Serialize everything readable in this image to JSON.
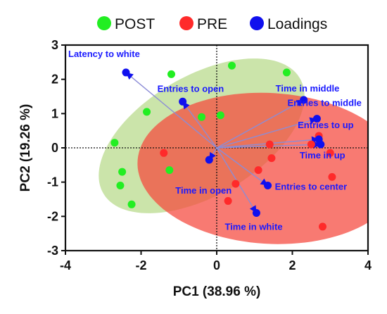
{
  "chart_data": {
    "type": "scatter",
    "xlabel": "PC1 (38.96 %)",
    "ylabel": "PC2 (19.26 %)",
    "xlim": [
      -4,
      4
    ],
    "ylim": [
      -3,
      3
    ],
    "x_ticks": [
      "-4",
      "-2",
      "0",
      "2",
      "4"
    ],
    "y_ticks": [
      "3",
      "2",
      "1",
      "0",
      "-1",
      "-2",
      "-3"
    ],
    "legend": {
      "placement": "top",
      "entries": [
        "POST",
        "PRE",
        "Loadings"
      ]
    },
    "colors": {
      "POST": "#22ee22",
      "PRE": "#ff2a2a",
      "Loadings": "#1010ee",
      "arrow": "#8c8cd6"
    },
    "series": [
      {
        "name": "POST",
        "points": [
          [
            -2.7,
            0.15
          ],
          [
            -2.5,
            -0.7
          ],
          [
            -2.55,
            -1.1
          ],
          [
            -2.25,
            -1.65
          ],
          [
            -1.85,
            1.05
          ],
          [
            -1.2,
            2.15
          ],
          [
            -1.25,
            -0.65
          ],
          [
            -0.4,
            0.9
          ],
          [
            0.1,
            0.95
          ],
          [
            0.4,
            2.4
          ],
          [
            1.85,
            2.2
          ]
        ]
      },
      {
        "name": "PRE",
        "points": [
          [
            -1.4,
            -0.15
          ],
          [
            0.5,
            -1.05
          ],
          [
            0.3,
            -1.55
          ],
          [
            1.4,
            0.1
          ],
          [
            1.45,
            -0.3
          ],
          [
            1.1,
            -0.65
          ],
          [
            2.5,
            0.1
          ],
          [
            2.7,
            0.35
          ],
          [
            2.8,
            -2.3
          ],
          [
            3.05,
            -0.85
          ],
          [
            3.0,
            -0.15
          ]
        ]
      }
    ],
    "loadings": [
      {
        "label": "Latency to white",
        "x": -2.4,
        "y": 2.2
      },
      {
        "label": "Entries to open",
        "x": -0.9,
        "y": 1.35
      },
      {
        "label": "Time in middle",
        "x": 2.3,
        "y": 1.4
      },
      {
        "label": "Entries to middle",
        "x": 2.65,
        "y": 0.85
      },
      {
        "label": "Entries to up",
        "x": 2.7,
        "y": 0.25
      },
      {
        "label": "Time in up",
        "x": 2.75,
        "y": 0.1
      },
      {
        "label": "Time in open",
        "x": -0.2,
        "y": -0.35
      },
      {
        "label": "Entries to center",
        "x": 1.35,
        "y": -1.1
      },
      {
        "label": "Time in white",
        "x": 1.05,
        "y": -1.9
      }
    ],
    "ellipses": [
      {
        "group": "POST",
        "cx": -0.4,
        "cy": 0.35,
        "rx": 3.1,
        "ry": 1.7,
        "angle_deg": 35
      },
      {
        "group": "PRE",
        "cx": 1.4,
        "cy": -0.6,
        "rx": 3.5,
        "ry": 2.2,
        "angle_deg": -4
      }
    ]
  }
}
